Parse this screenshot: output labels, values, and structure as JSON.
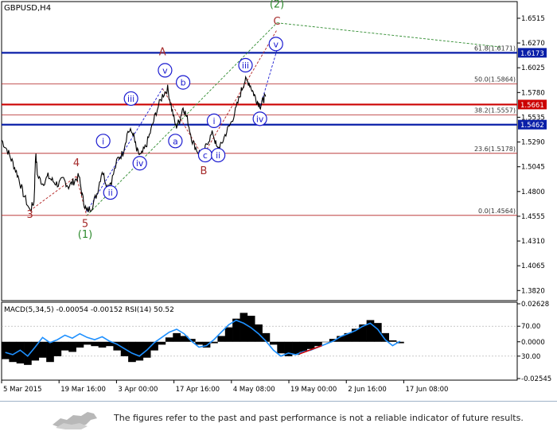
{
  "chart_data": {
    "type": "line",
    "title": "GBPUSD,H4",
    "price_axis": {
      "ticks": [
        "1.6515",
        "1.6270",
        "1.6025",
        "1.5780",
        "1.5535",
        "1.5290",
        "1.5045",
        "1.4800",
        "1.4555",
        "1.4310",
        "1.4065",
        "1.3820"
      ],
      "ylim": [
        1.372,
        1.668
      ]
    },
    "x_labels": [
      "5 Mar 2015",
      "19 Mar 16:00",
      "3 Apr 00:00",
      "17 Apr 16:00",
      "4 May 08:00",
      "19 May 00:00",
      "2 Jun 16:00",
      "17 Jun 08:00"
    ],
    "fibonacci": [
      {
        "label": "61.8(1.6171)",
        "value": 1.6171
      },
      {
        "label": "50.0(1.5864)",
        "value": 1.5864
      },
      {
        "label": "38.2(1.5557)",
        "value": 1.5557
      },
      {
        "label": "23.6(1.5178)",
        "value": 1.5178
      },
      {
        "label": "0.0(1.4564)",
        "value": 1.4564
      }
    ],
    "horizontal_levels": [
      {
        "price": 1.6173,
        "label": "1.6173",
        "color": "#0a1fa8"
      },
      {
        "price": 1.5661,
        "label": "1.5661",
        "color": "#cc0000"
      },
      {
        "price": 1.5462,
        "label": "1.5462",
        "color": "#0a1fa8"
      }
    ],
    "wave_labels_plain": [
      {
        "text": "3",
        "color": "#a52a2a",
        "x": 0.055,
        "p": 1.454
      },
      {
        "text": "4",
        "color": "#a52a2a",
        "x": 0.145,
        "p": 1.505
      },
      {
        "text": "5",
        "color": "#a52a2a",
        "x": 0.162,
        "p": 1.445
      },
      {
        "text": "(1)",
        "color": "#2e8b2e",
        "x": 0.162,
        "p": 1.434
      },
      {
        "text": "A",
        "color": "#a52a2a",
        "x": 0.312,
        "p": 1.615
      },
      {
        "text": "B",
        "color": "#a52a2a",
        "x": 0.392,
        "p": 1.497
      },
      {
        "text": "C",
        "color": "#a52a2a",
        "x": 0.534,
        "p": 1.645
      },
      {
        "text": "(2)",
        "color": "#2e8b2e",
        "x": 0.534,
        "p": 1.662
      }
    ],
    "wave_labels_circled": [
      {
        "text": "i",
        "color": "#1a1ad0",
        "x": 0.197,
        "p": 1.53
      },
      {
        "text": "ii",
        "color": "#1a1ad0",
        "x": 0.211,
        "p": 1.479
      },
      {
        "text": "iii",
        "color": "#1a1ad0",
        "x": 0.251,
        "p": 1.572
      },
      {
        "text": "iv",
        "color": "#1a1ad0",
        "x": 0.268,
        "p": 1.508
      },
      {
        "text": "v",
        "color": "#1a1ad0",
        "x": 0.317,
        "p": 1.6
      },
      {
        "text": "a",
        "color": "#1a1ad0",
        "x": 0.337,
        "p": 1.53
      },
      {
        "text": "b",
        "color": "#1a1ad0",
        "x": 0.352,
        "p": 1.588
      },
      {
        "text": "c",
        "color": "#1a1ad0",
        "x": 0.395,
        "p": 1.516
      },
      {
        "text": "i",
        "color": "#1a1ad0",
        "x": 0.412,
        "p": 1.55
      },
      {
        "text": "ii",
        "color": "#1a1ad0",
        "x": 0.42,
        "p": 1.516
      },
      {
        "text": "iii",
        "color": "#1a1ad0",
        "x": 0.473,
        "p": 1.605
      },
      {
        "text": "iv",
        "color": "#1a1ad0",
        "x": 0.501,
        "p": 1.552
      },
      {
        "text": "v",
        "color": "#1a1ad0",
        "x": 0.532,
        "p": 1.626
      }
    ],
    "price_path": [
      [
        0.0,
        1.531
      ],
      [
        0.012,
        1.52
      ],
      [
        0.022,
        1.508
      ],
      [
        0.032,
        1.495
      ],
      [
        0.042,
        1.478
      ],
      [
        0.055,
        1.461
      ],
      [
        0.063,
        1.47
      ],
      [
        0.066,
        1.518
      ],
      [
        0.07,
        1.495
      ],
      [
        0.08,
        1.488
      ],
      [
        0.09,
        1.495
      ],
      [
        0.1,
        1.49
      ],
      [
        0.11,
        1.487
      ],
      [
        0.12,
        1.492
      ],
      [
        0.13,
        1.485
      ],
      [
        0.14,
        1.49
      ],
      [
        0.15,
        1.495
      ],
      [
        0.158,
        1.472
      ],
      [
        0.165,
        1.46
      ],
      [
        0.175,
        1.465
      ],
      [
        0.185,
        1.478
      ],
      [
        0.195,
        1.501
      ],
      [
        0.205,
        1.485
      ],
      [
        0.213,
        1.49
      ],
      [
        0.225,
        1.512
      ],
      [
        0.235,
        1.518
      ],
      [
        0.245,
        1.54
      ],
      [
        0.255,
        1.538
      ],
      [
        0.262,
        1.52
      ],
      [
        0.27,
        1.515
      ],
      [
        0.28,
        1.525
      ],
      [
        0.29,
        1.541
      ],
      [
        0.3,
        1.559
      ],
      [
        0.312,
        1.575
      ],
      [
        0.322,
        1.582
      ],
      [
        0.33,
        1.562
      ],
      [
        0.338,
        1.544
      ],
      [
        0.345,
        1.55
      ],
      [
        0.352,
        1.564
      ],
      [
        0.36,
        1.552
      ],
      [
        0.37,
        1.53
      ],
      [
        0.38,
        1.52
      ],
      [
        0.39,
        1.515
      ],
      [
        0.4,
        1.53
      ],
      [
        0.41,
        1.538
      ],
      [
        0.418,
        1.522
      ],
      [
        0.425,
        1.525
      ],
      [
        0.435,
        1.538
      ],
      [
        0.445,
        1.548
      ],
      [
        0.455,
        1.562
      ],
      [
        0.465,
        1.58
      ],
      [
        0.472,
        1.59
      ],
      [
        0.48,
        1.588
      ],
      [
        0.488,
        1.578
      ],
      [
        0.495,
        1.57
      ],
      [
        0.502,
        1.565
      ],
      [
        0.508,
        1.571
      ],
      [
        0.512,
        1.574
      ]
    ],
    "indicator": {
      "label": "MACD(5,34,5) -0.00054 -0.00152 RSI(14) 50.52",
      "ticks": [
        "0.02628",
        "70.00",
        "0.0000",
        "30.00",
        "-0.02545"
      ],
      "macd": [
        -0.012,
        -0.014,
        -0.015,
        -0.016,
        -0.013,
        -0.011,
        -0.014,
        -0.01,
        -0.006,
        -0.007,
        -0.004,
        -0.002,
        -0.003,
        -0.004,
        -0.003,
        -0.006,
        -0.01,
        -0.014,
        -0.013,
        -0.011,
        -0.006,
        -0.002,
        0.003,
        0.006,
        0.004,
        0.002,
        -0.002,
        -0.004,
        -0.001,
        0.004,
        0.01,
        0.016,
        0.02,
        0.018,
        0.012,
        0.006,
        -0.002,
        -0.008,
        -0.01,
        -0.009,
        -0.007,
        -0.005,
        -0.003,
        0.0,
        0.002,
        0.004,
        0.006,
        0.009,
        0.012,
        0.015,
        0.013,
        0.006,
        0.001,
        -0.001
      ],
      "rsi": [
        35,
        32,
        38,
        30,
        42,
        55,
        48,
        52,
        58,
        54,
        60,
        55,
        52,
        56,
        50,
        46,
        40,
        34,
        30,
        38,
        48,
        55,
        62,
        66,
        60,
        50,
        42,
        44,
        52,
        62,
        72,
        78,
        74,
        68,
        60,
        50,
        38,
        30,
        34,
        32,
        36,
        38,
        42,
        46,
        50,
        56,
        60,
        64,
        70,
        74,
        66,
        52,
        44,
        50
      ]
    }
  },
  "footer": {
    "disclaimer": "The figures refer to the past and past performance is not a reliable indicator of future results."
  }
}
